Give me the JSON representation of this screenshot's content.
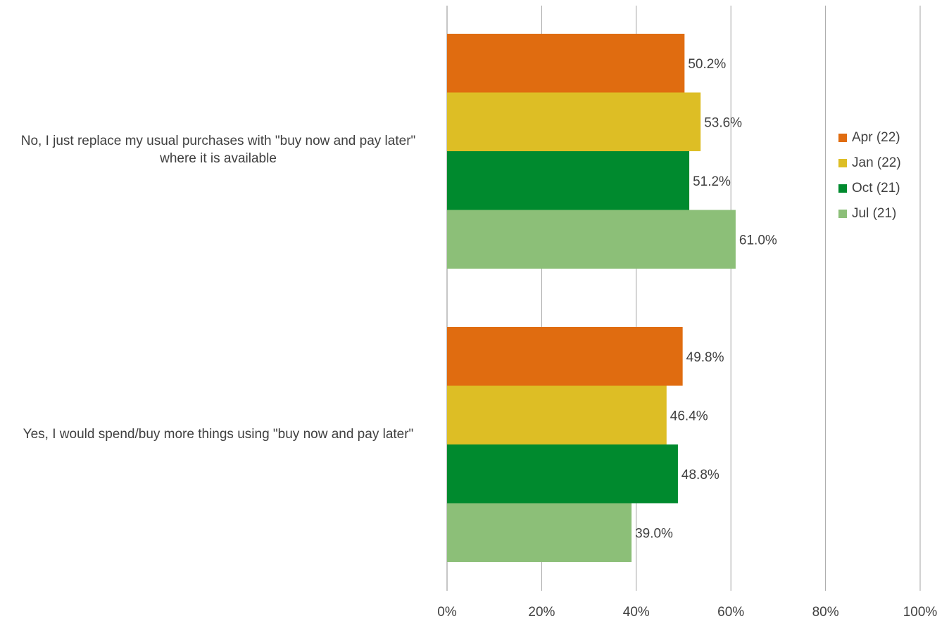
{
  "chart_data": {
    "type": "bar",
    "orientation": "horizontal",
    "categories": [
      "No, I just replace my usual purchases with \"buy now and pay later\" where it is available",
      "Yes, I would spend/buy more things using \"buy now and pay later\""
    ],
    "series": [
      {
        "name": "Apr (22)",
        "color": "#E06C10",
        "values": [
          50.2,
          49.8
        ],
        "labels": [
          "50.2%",
          "49.8%"
        ]
      },
      {
        "name": "Jan (22)",
        "color": "#DDBE25",
        "values": [
          53.6,
          46.4
        ],
        "labels": [
          "53.6%",
          "46.4%"
        ]
      },
      {
        "name": "Oct (21)",
        "color": "#008A2E",
        "values": [
          51.2,
          48.8
        ],
        "labels": [
          "51.2%",
          "48.8%"
        ]
      },
      {
        "name": "Jul (21)",
        "color": "#8CBF78",
        "values": [
          61.0,
          39.0
        ],
        "labels": [
          "61.0%",
          "39.0%"
        ]
      }
    ],
    "xlim": [
      0,
      100
    ],
    "xticks": [
      "0%",
      "20%",
      "40%",
      "60%",
      "80%",
      "100%"
    ],
    "grid": true,
    "legend_position": "right"
  }
}
